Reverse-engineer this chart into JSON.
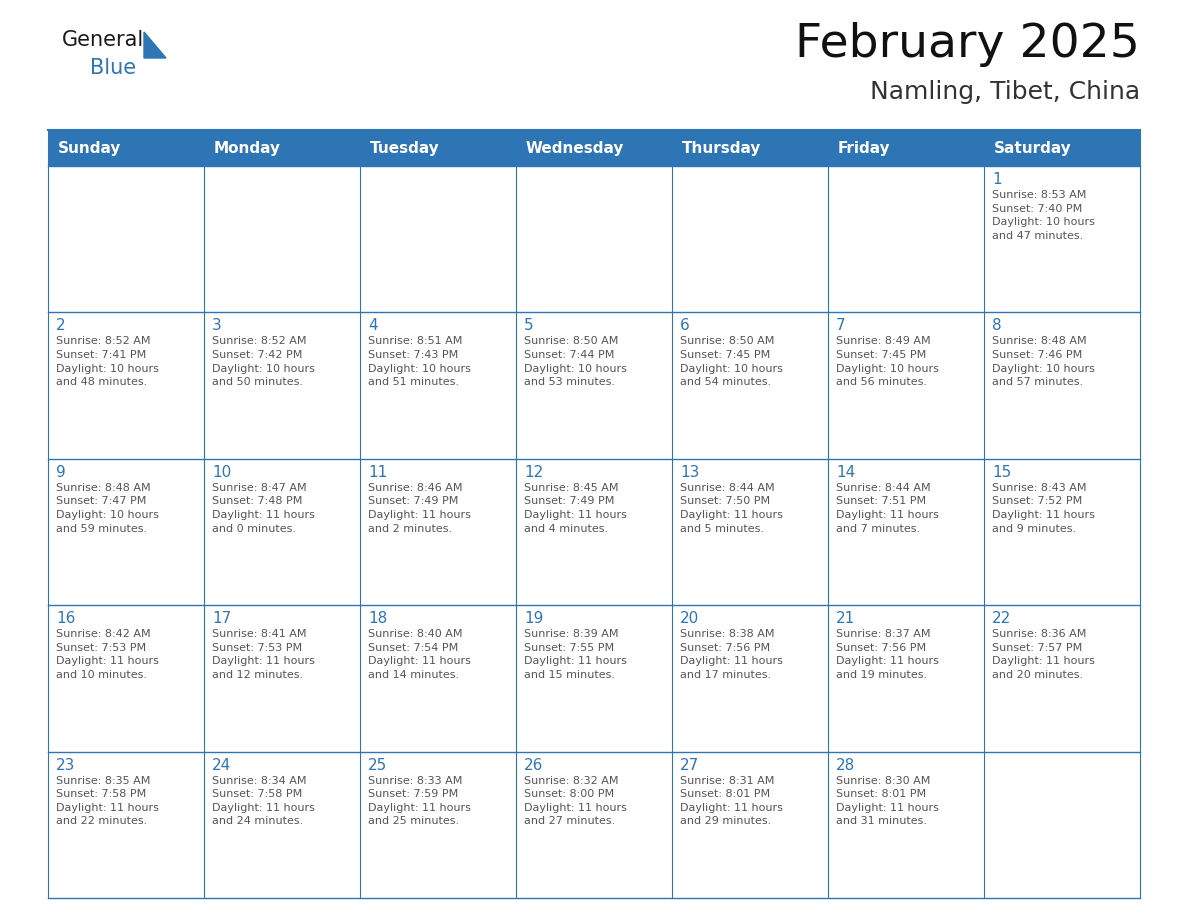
{
  "title": "February 2025",
  "subtitle": "Namling, Tibet, China",
  "header_bg": "#2E75B6",
  "header_text_color": "#FFFFFF",
  "cell_bg": "#FFFFFF",
  "border_color": "#2E75B6",
  "day_number_color": "#2E75B6",
  "cell_text_color": "#555555",
  "days_of_week": [
    "Sunday",
    "Monday",
    "Tuesday",
    "Wednesday",
    "Thursday",
    "Friday",
    "Saturday"
  ],
  "calendar_data": [
    [
      null,
      null,
      null,
      null,
      null,
      null,
      {
        "day": 1,
        "sunrise": "8:53 AM",
        "sunset": "7:40 PM",
        "daylight": "10 hours\nand 47 minutes."
      }
    ],
    [
      {
        "day": 2,
        "sunrise": "8:52 AM",
        "sunset": "7:41 PM",
        "daylight": "10 hours\nand 48 minutes."
      },
      {
        "day": 3,
        "sunrise": "8:52 AM",
        "sunset": "7:42 PM",
        "daylight": "10 hours\nand 50 minutes."
      },
      {
        "day": 4,
        "sunrise": "8:51 AM",
        "sunset": "7:43 PM",
        "daylight": "10 hours\nand 51 minutes."
      },
      {
        "day": 5,
        "sunrise": "8:50 AM",
        "sunset": "7:44 PM",
        "daylight": "10 hours\nand 53 minutes."
      },
      {
        "day": 6,
        "sunrise": "8:50 AM",
        "sunset": "7:45 PM",
        "daylight": "10 hours\nand 54 minutes."
      },
      {
        "day": 7,
        "sunrise": "8:49 AM",
        "sunset": "7:45 PM",
        "daylight": "10 hours\nand 56 minutes."
      },
      {
        "day": 8,
        "sunrise": "8:48 AM",
        "sunset": "7:46 PM",
        "daylight": "10 hours\nand 57 minutes."
      }
    ],
    [
      {
        "day": 9,
        "sunrise": "8:48 AM",
        "sunset": "7:47 PM",
        "daylight": "10 hours\nand 59 minutes."
      },
      {
        "day": 10,
        "sunrise": "8:47 AM",
        "sunset": "7:48 PM",
        "daylight": "11 hours\nand 0 minutes."
      },
      {
        "day": 11,
        "sunrise": "8:46 AM",
        "sunset": "7:49 PM",
        "daylight": "11 hours\nand 2 minutes."
      },
      {
        "day": 12,
        "sunrise": "8:45 AM",
        "sunset": "7:49 PM",
        "daylight": "11 hours\nand 4 minutes."
      },
      {
        "day": 13,
        "sunrise": "8:44 AM",
        "sunset": "7:50 PM",
        "daylight": "11 hours\nand 5 minutes."
      },
      {
        "day": 14,
        "sunrise": "8:44 AM",
        "sunset": "7:51 PM",
        "daylight": "11 hours\nand 7 minutes."
      },
      {
        "day": 15,
        "sunrise": "8:43 AM",
        "sunset": "7:52 PM",
        "daylight": "11 hours\nand 9 minutes."
      }
    ],
    [
      {
        "day": 16,
        "sunrise": "8:42 AM",
        "sunset": "7:53 PM",
        "daylight": "11 hours\nand 10 minutes."
      },
      {
        "day": 17,
        "sunrise": "8:41 AM",
        "sunset": "7:53 PM",
        "daylight": "11 hours\nand 12 minutes."
      },
      {
        "day": 18,
        "sunrise": "8:40 AM",
        "sunset": "7:54 PM",
        "daylight": "11 hours\nand 14 minutes."
      },
      {
        "day": 19,
        "sunrise": "8:39 AM",
        "sunset": "7:55 PM",
        "daylight": "11 hours\nand 15 minutes."
      },
      {
        "day": 20,
        "sunrise": "8:38 AM",
        "sunset": "7:56 PM",
        "daylight": "11 hours\nand 17 minutes."
      },
      {
        "day": 21,
        "sunrise": "8:37 AM",
        "sunset": "7:56 PM",
        "daylight": "11 hours\nand 19 minutes."
      },
      {
        "day": 22,
        "sunrise": "8:36 AM",
        "sunset": "7:57 PM",
        "daylight": "11 hours\nand 20 minutes."
      }
    ],
    [
      {
        "day": 23,
        "sunrise": "8:35 AM",
        "sunset": "7:58 PM",
        "daylight": "11 hours\nand 22 minutes."
      },
      {
        "day": 24,
        "sunrise": "8:34 AM",
        "sunset": "7:58 PM",
        "daylight": "11 hours\nand 24 minutes."
      },
      {
        "day": 25,
        "sunrise": "8:33 AM",
        "sunset": "7:59 PM",
        "daylight": "11 hours\nand 25 minutes."
      },
      {
        "day": 26,
        "sunrise": "8:32 AM",
        "sunset": "8:00 PM",
        "daylight": "11 hours\nand 27 minutes."
      },
      {
        "day": 27,
        "sunrise": "8:31 AM",
        "sunset": "8:01 PM",
        "daylight": "11 hours\nand 29 minutes."
      },
      {
        "day": 28,
        "sunrise": "8:30 AM",
        "sunset": "8:01 PM",
        "daylight": "11 hours\nand 31 minutes."
      },
      null
    ]
  ],
  "logo_text_general": "General",
  "logo_text_blue": "Blue",
  "logo_color_general": "#1a1a1a",
  "logo_color_blue": "#2E75B6",
  "logo_triangle_color": "#2E75B6",
  "title_fontsize": 34,
  "subtitle_fontsize": 18,
  "header_fontsize": 11,
  "day_num_fontsize": 11,
  "cell_text_fontsize": 8.0
}
